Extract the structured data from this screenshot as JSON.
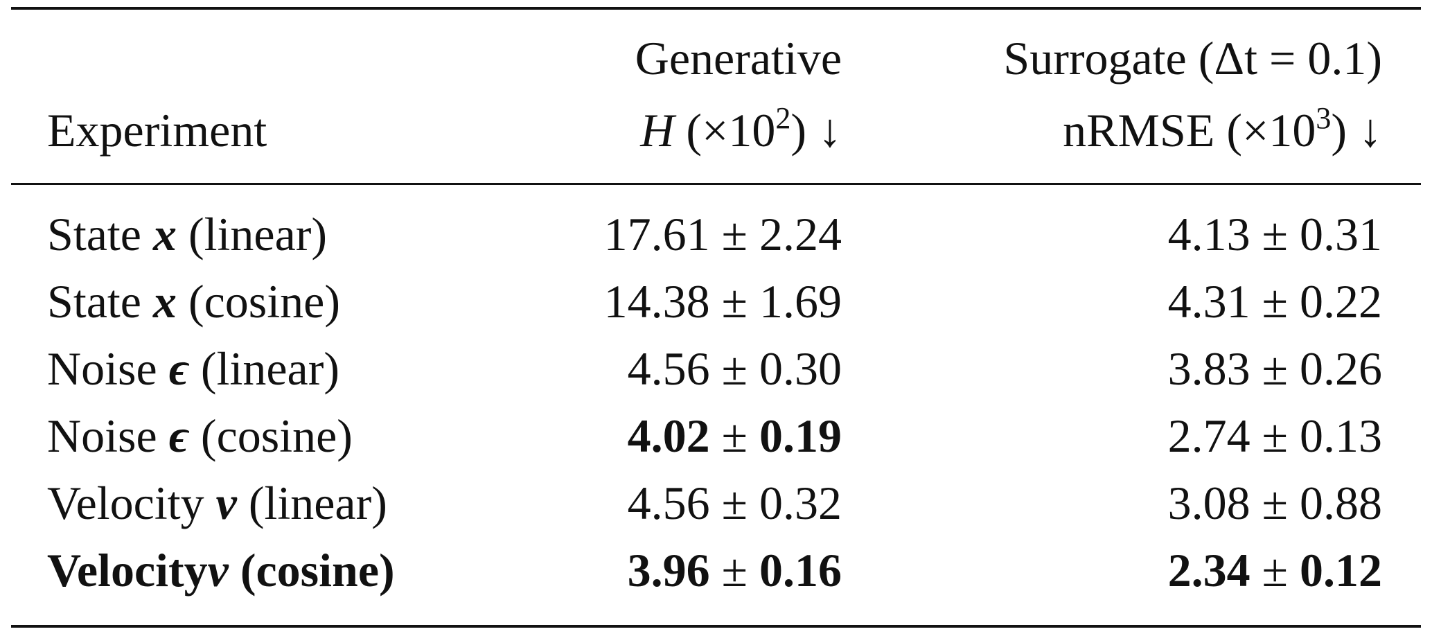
{
  "table": {
    "header": {
      "experiment": "Experiment",
      "generative_group": "Generative",
      "generative_metric": {
        "symbol": "H",
        "scale_prefix": "(×10",
        "scale_exp": "2",
        "scale_suffix": ")",
        "arrow": "↓"
      },
      "surrogate_group": "Surrogate (Δt = 0.1)",
      "surrogate_metric": {
        "name": "nRMSE",
        "scale_prefix": "(×10",
        "scale_exp": "3",
        "scale_suffix": ")",
        "arrow": "↓"
      }
    },
    "rows": [
      {
        "label_prefix": "State",
        "symbol": "x",
        "label_suffix": "(linear)",
        "generative": {
          "mean": "17.61",
          "pm": "±",
          "std": "2.24",
          "bold": false
        },
        "surrogate": {
          "mean": "4.13",
          "pm": "±",
          "std": "0.31",
          "bold": false
        }
      },
      {
        "label_prefix": "State",
        "symbol": "x",
        "label_suffix": "(cosine)",
        "generative": {
          "mean": "14.38",
          "pm": "±",
          "std": "1.69",
          "bold": false
        },
        "surrogate": {
          "mean": "4.31",
          "pm": "±",
          "std": "0.22",
          "bold": false
        }
      },
      {
        "label_prefix": "Noise",
        "symbol": "ϵ",
        "label_suffix": "(linear)",
        "generative": {
          "mean": "4.56",
          "pm": "±",
          "std": "0.30",
          "bold": false
        },
        "surrogate": {
          "mean": "3.83",
          "pm": "±",
          "std": "0.26",
          "bold": false
        }
      },
      {
        "label_prefix": "Noise",
        "symbol": "ϵ",
        "label_suffix": "(cosine)",
        "generative": {
          "mean": "4.02",
          "pm": "±",
          "std": "0.19",
          "bold": true
        },
        "surrogate": {
          "mean": "2.74",
          "pm": "±",
          "std": "0.13",
          "bold": false
        }
      },
      {
        "label_prefix": "Velocity",
        "symbol": "v",
        "label_suffix": "(linear)",
        "generative": {
          "mean": "4.56",
          "pm": "±",
          "std": "0.32",
          "bold": false
        },
        "surrogate": {
          "mean": "3.08",
          "pm": "±",
          "std": "0.88",
          "bold": false
        }
      },
      {
        "label_prefix": "Velocity",
        "symbol": "v",
        "label_suffix": "(cosine)",
        "generative": {
          "mean": "3.96",
          "pm": "±",
          "std": "0.16",
          "bold": true
        },
        "surrogate": {
          "mean": "2.34",
          "pm": "±",
          "std": "0.12",
          "bold": true
        }
      }
    ]
  }
}
